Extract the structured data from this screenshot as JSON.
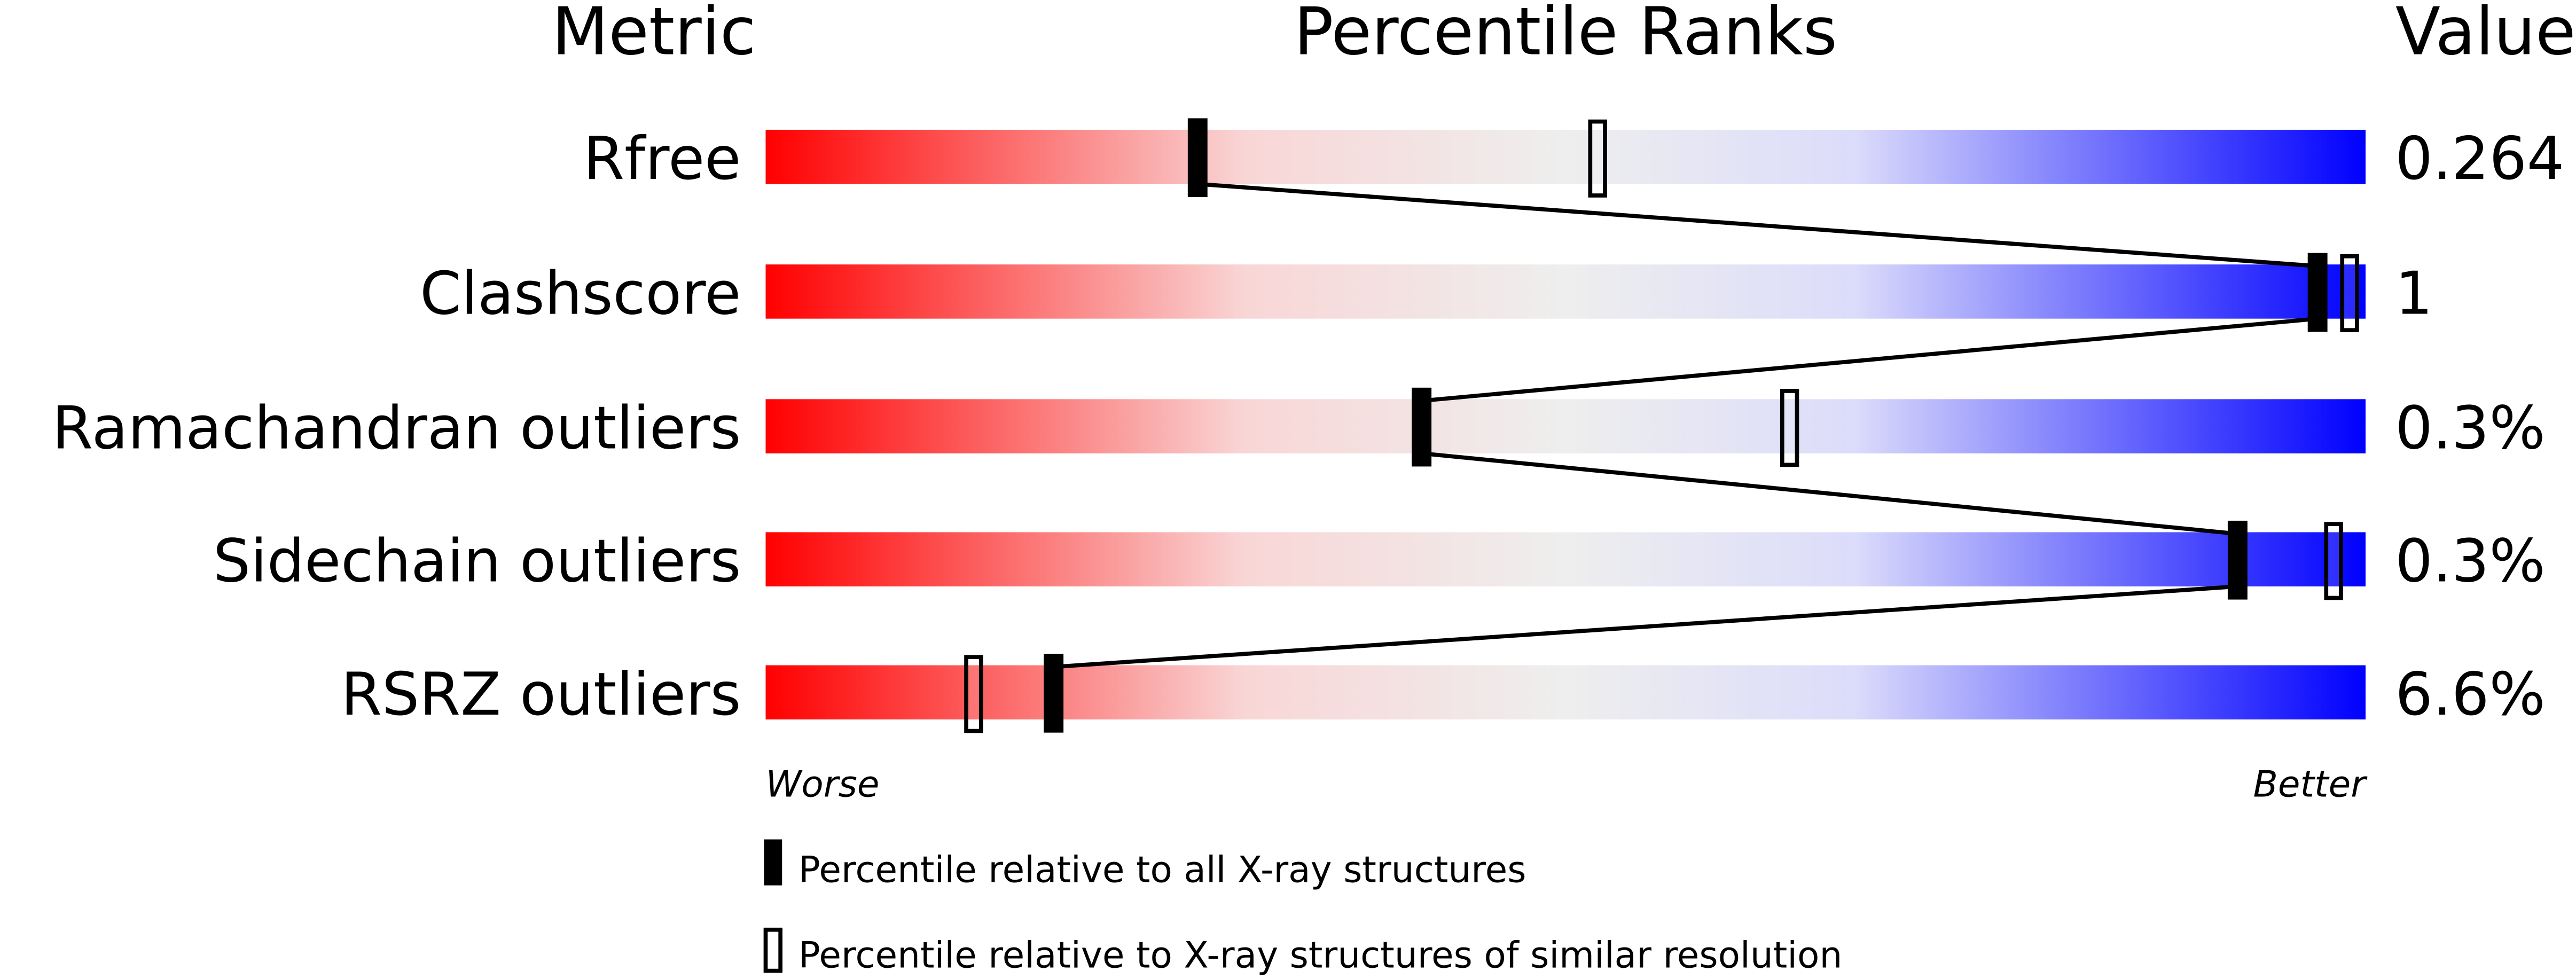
{
  "chart_data": {
    "type": "percentile-ranks",
    "headers": {
      "metric": "Metric",
      "ranks": "Percentile Ranks",
      "value": "Value"
    },
    "xlim": [
      0,
      100
    ],
    "axis_labels": {
      "left": "Worse",
      "right": "Better"
    },
    "gradient_colors": [
      "#ff0000",
      "#f9d6d6",
      "#eeeeee",
      "#dcdcfb",
      "#0000ff"
    ],
    "rows": [
      {
        "metric": "Rfree",
        "value": "0.264",
        "percentile_all": 27,
        "percentile_similar": 52
      },
      {
        "metric": "Clashscore",
        "value": "1",
        "percentile_all": 97,
        "percentile_similar": 99
      },
      {
        "metric": "Ramachandran outliers",
        "value": "0.3%",
        "percentile_all": 41,
        "percentile_similar": 64
      },
      {
        "metric": "Sidechain outliers",
        "value": "0.3%",
        "percentile_all": 92,
        "percentile_similar": 98
      },
      {
        "metric": "RSRZ outliers",
        "value": "6.6%",
        "percentile_all": 18,
        "percentile_similar": 13
      }
    ],
    "legend": [
      {
        "marker": "filled",
        "label": "Percentile relative to all X-ray structures"
      },
      {
        "marker": "open",
        "label": "Percentile relative to X-ray structures of similar resolution"
      }
    ]
  }
}
